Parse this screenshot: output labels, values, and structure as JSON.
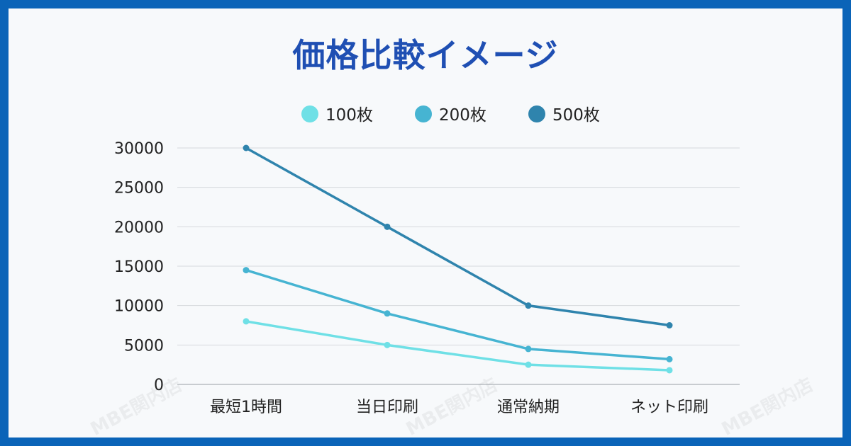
{
  "title": "価格比較イメージ",
  "watermark": "MBE関内店",
  "colors": {
    "frame": "#0b64b8",
    "title": "#1f4fb3",
    "grid": "#d6d9dd",
    "axis": "#9aa0a6"
  },
  "chart_data": {
    "type": "line",
    "title": "価格比較イメージ",
    "categories": [
      "最短1時間",
      "当日印刷",
      "通常納期",
      "ネット印刷"
    ],
    "series": [
      {
        "name": "100枚",
        "values": [
          8000,
          5000,
          2500,
          1800
        ],
        "color": "#6fe0e6"
      },
      {
        "name": "200枚",
        "values": [
          14500,
          9000,
          4500,
          3200
        ],
        "color": "#46b4d2"
      },
      {
        "name": "500枚",
        "values": [
          30000,
          20000,
          10000,
          7500
        ],
        "color": "#2f84ad"
      }
    ],
    "yticks": [
      "0",
      "5000",
      "10000",
      "15000",
      "20000",
      "25000",
      "30000"
    ],
    "ylim": [
      0,
      30000
    ],
    "grid": true,
    "legend": "top-center",
    "xlabel": "",
    "ylabel": ""
  }
}
